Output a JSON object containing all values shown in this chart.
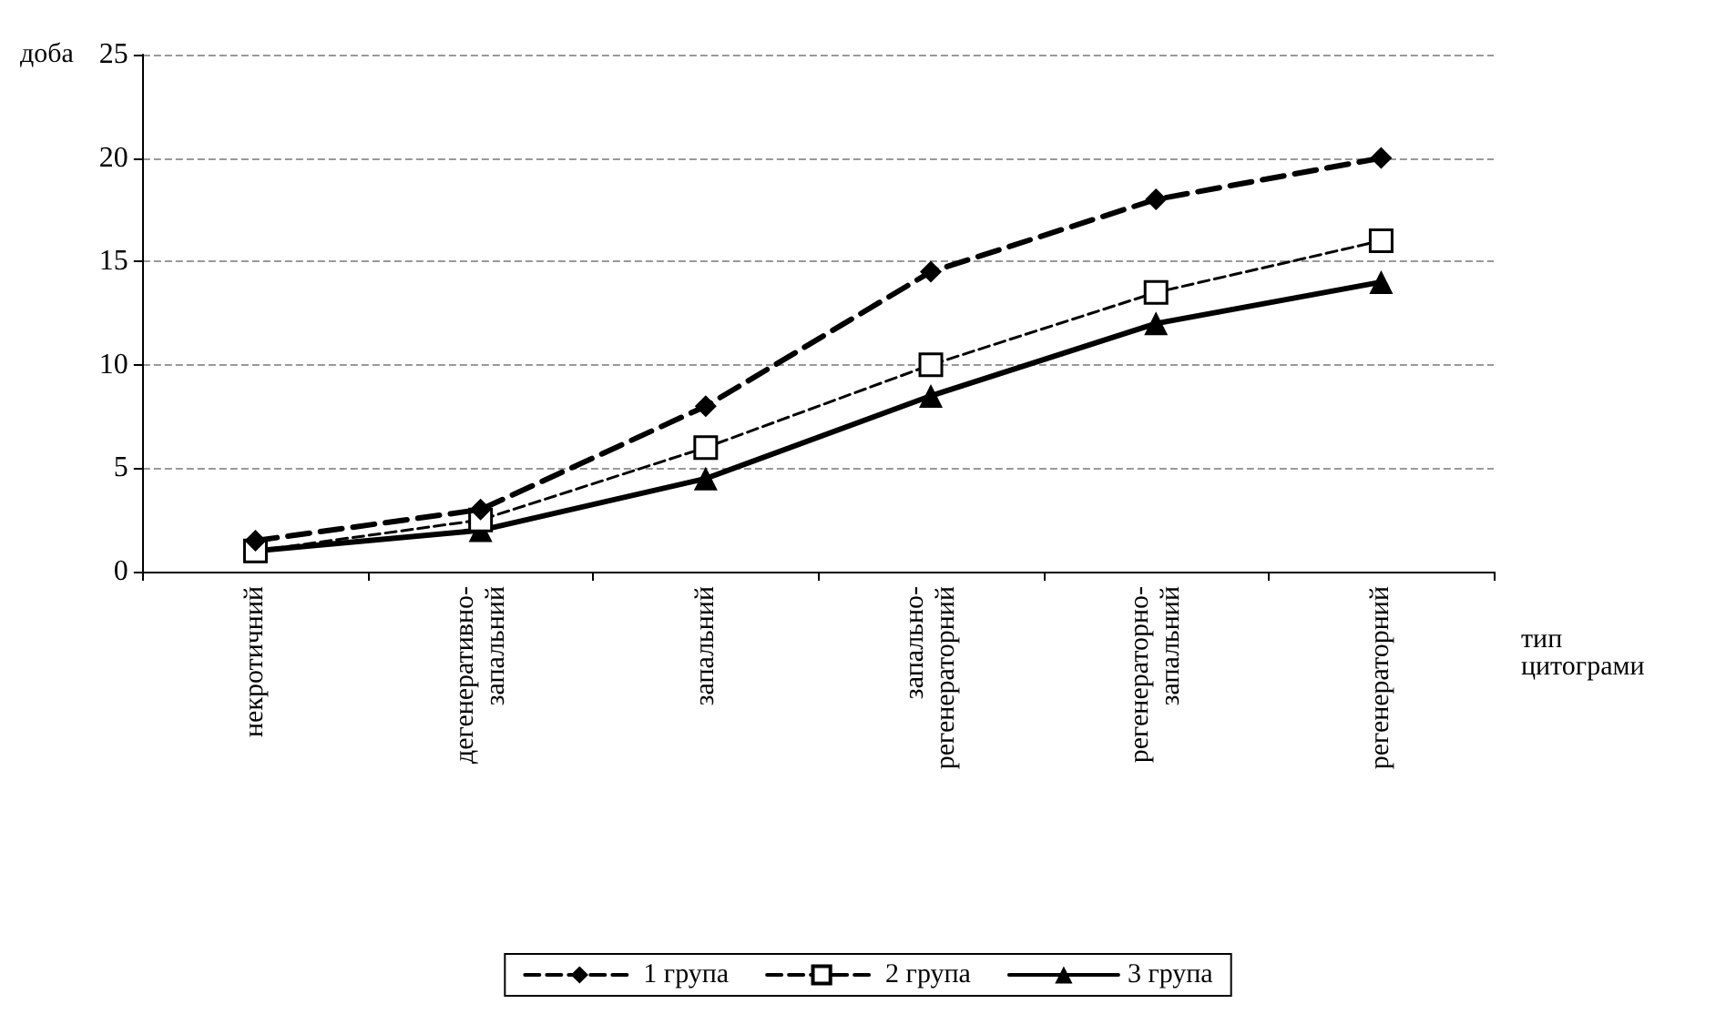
{
  "chart_data": {
    "type": "line",
    "ylabel": "доба",
    "xlabel": "тип цитограми",
    "categories": [
      "некротичний",
      "дегенеративно-запальний",
      "запальний",
      "запально-регенераторний",
      "регенераторно-запальний",
      "регенераторний"
    ],
    "ylim": [
      0,
      25
    ],
    "yticks": [
      0,
      5,
      10,
      15,
      20,
      25
    ],
    "grid": "y",
    "legend": "bottom",
    "series": [
      {
        "name": "1 група",
        "color": "#000000",
        "marker": "diamond",
        "line_style": "dashed",
        "values": [
          1.5,
          3,
          8,
          14.5,
          18,
          20
        ]
      },
      {
        "name": "2 група",
        "color": "#000000",
        "marker": "square",
        "line_style": "dashed",
        "values": [
          1,
          2.5,
          6,
          10,
          13.5,
          16
        ]
      },
      {
        "name": "3 група",
        "color": "#000000",
        "marker": "triangle",
        "line_style": "solid",
        "values": [
          1,
          2,
          4.5,
          8.5,
          12,
          14
        ]
      }
    ]
  }
}
